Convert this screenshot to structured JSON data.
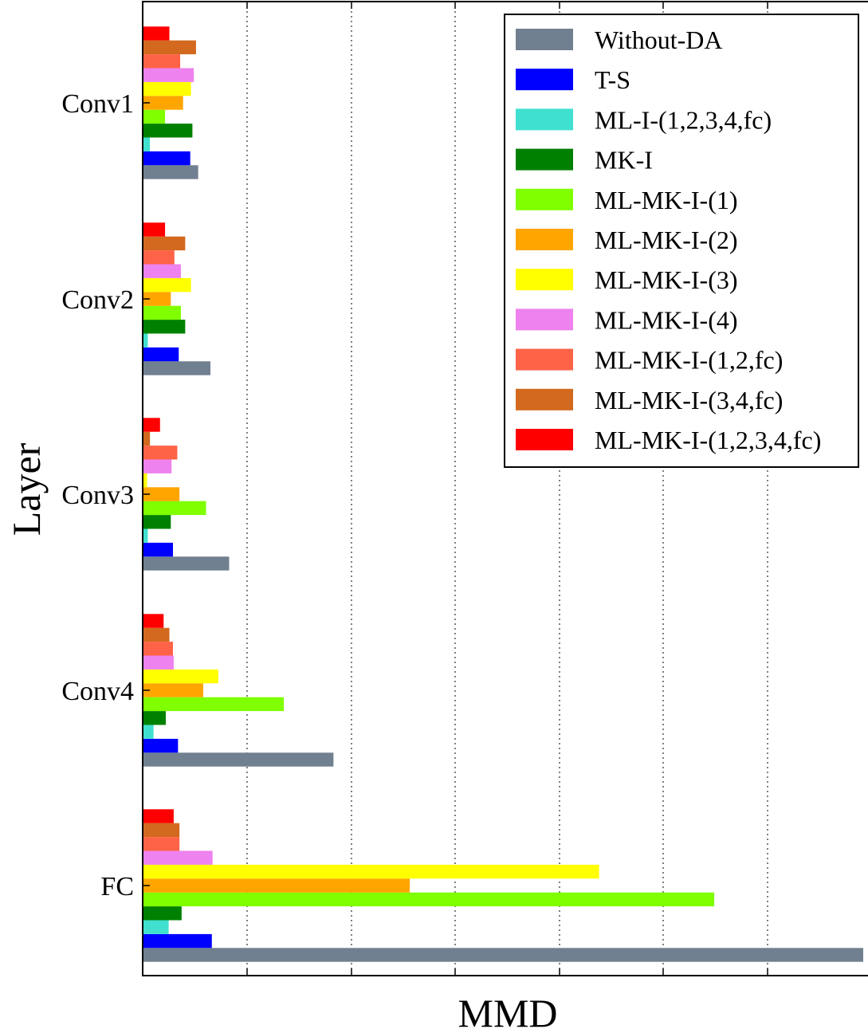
{
  "chart_data": {
    "type": "bar",
    "orientation": "horizontal",
    "title": "",
    "xlabel": "MMD",
    "ylabel": "Layer",
    "xlim": [
      0,
      1
    ],
    "x_tick_labels": [],
    "grid": "x-dotted",
    "legend_position": "top-right",
    "categories": [
      "Conv1",
      "Conv2",
      "Conv3",
      "Conv4",
      "FC"
    ],
    "series": [
      {
        "name": "Without-DA",
        "color": "#708090",
        "values": [
          0.076,
          0.093,
          0.119,
          0.264,
          1.0
        ]
      },
      {
        "name": "T-S",
        "color": "#0000ff",
        "values": [
          0.065,
          0.049,
          0.041,
          0.048,
          0.095
        ]
      },
      {
        "name": "ML-I-(1,2,3,4,fc)",
        "color": "#40e0d0",
        "values": [
          0.009,
          0.006,
          0.006,
          0.014,
          0.035
        ]
      },
      {
        "name": "MK-I",
        "color": "#008000",
        "values": [
          0.068,
          0.058,
          0.038,
          0.031,
          0.053
        ]
      },
      {
        "name": "ML-MK-I-(1)",
        "color": "#7fff00",
        "values": [
          0.03,
          0.052,
          0.087,
          0.195,
          0.793
        ]
      },
      {
        "name": "ML-MK-I-(2)",
        "color": "#ffa500",
        "values": [
          0.055,
          0.038,
          0.05,
          0.083,
          0.37
        ]
      },
      {
        "name": "ML-MK-I-(3)",
        "color": "#ffff00",
        "values": [
          0.066,
          0.066,
          0.005,
          0.104,
          0.633
        ]
      },
      {
        "name": "ML-MK-I-(4)",
        "color": "#ee82ee",
        "values": [
          0.07,
          0.052,
          0.039,
          0.042,
          0.096
        ]
      },
      {
        "name": "ML-MK-I-(1,2,fc)",
        "color": "#ff6347",
        "values": [
          0.051,
          0.043,
          0.047,
          0.041,
          0.05
        ]
      },
      {
        "name": "ML-MK-I-(3,4,fc)",
        "color": "#d2691e",
        "values": [
          0.073,
          0.058,
          0.009,
          0.036,
          0.05
        ]
      },
      {
        "name": "ML-MK-I-(1,2,3,4,fc)",
        "color": "#ff0000",
        "values": [
          0.036,
          0.03,
          0.023,
          0.028,
          0.042
        ]
      }
    ]
  }
}
